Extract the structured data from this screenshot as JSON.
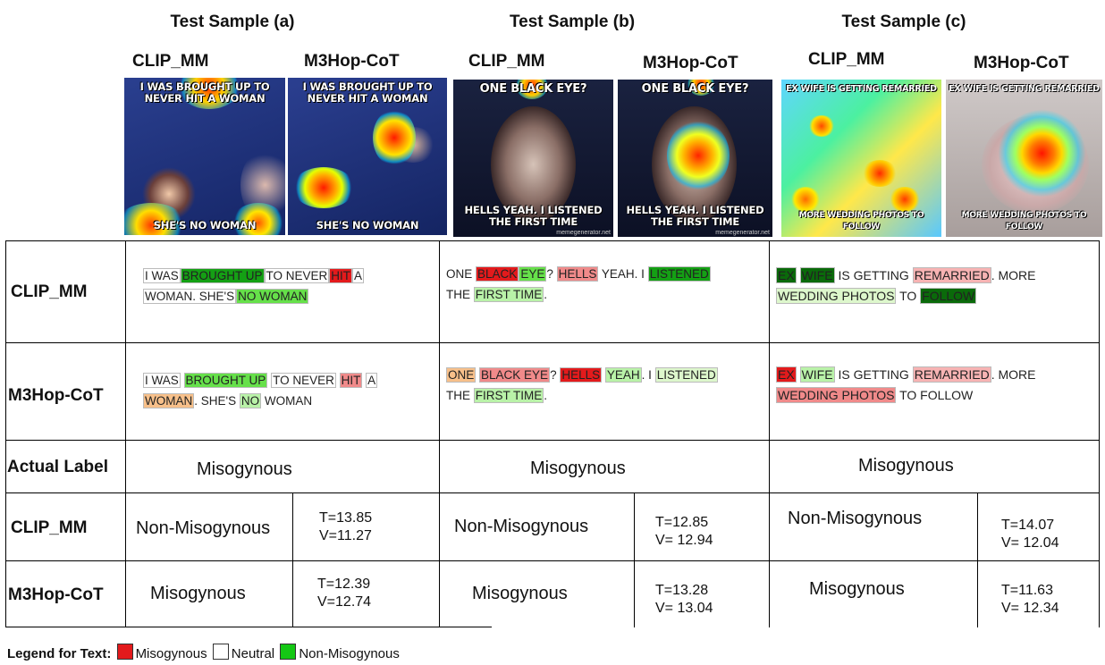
{
  "samples": {
    "a": {
      "title": "Test Sample (a)"
    },
    "b": {
      "title": "Test Sample (b)"
    },
    "c": {
      "title": "Test Sample (c)"
    }
  },
  "model_heads": {
    "clip": "CLIP_MM",
    "m3hop": "M3Hop-CoT"
  },
  "images": {
    "a": {
      "top_caption": "I WAS BROUGHT UP TO NEVER HIT A WOMAN",
      "bottom_caption": "SHE'S NO WOMAN"
    },
    "b": {
      "top_caption": "ONE BLACK EYE?",
      "bottom_caption": "HELLS YEAH. I LISTENED THE FIRST TIME",
      "watermark": "memegenerator.net"
    },
    "c": {
      "top_caption": "EX WIFE IS GETTING REMARRIED",
      "bottom_caption": "MORE WEDDING PHOTOS TO FOLLOW"
    }
  },
  "row_labels": {
    "clip": "CLIP_MM",
    "m3hop": "M3Hop-CoT",
    "actual": "Actual Label",
    "clip2": "CLIP_MM",
    "m3hop2": "M3Hop-CoT"
  },
  "text_highlights": {
    "a_clip": [
      "I WAS",
      "BROUGHT UP",
      "TO NEVER",
      "HIT",
      "A",
      "WOMAN. SHE'S",
      "NO WOMAN"
    ],
    "a_m3": [
      "I WAS",
      "BROUGHT UP",
      "TO NEVER",
      "HIT",
      "A",
      "WOMAN",
      ". SHE'S",
      "NO",
      "WOMAN"
    ],
    "b_clip": [
      "ONE",
      "BLACK",
      "EYE",
      "?",
      "HELLS",
      "YEAH. I",
      "LISTENED",
      "THE",
      "FIRST TIME",
      "."
    ],
    "b_m3": [
      "ONE",
      "BLACK EYE",
      "?",
      "HELLS",
      "YEAH",
      ". I",
      "LISTENED",
      "THE",
      "FIRST TIME",
      "."
    ],
    "c_clip": [
      "EX",
      "WIFE",
      "IS GETTING",
      "REMARRIED",
      ". MORE",
      "WEDDING PHOTOS",
      "TO",
      "FOLLOW"
    ],
    "c_m3": [
      "EX",
      "WIFE",
      "IS GETTING",
      "REMARRIED",
      ". MORE",
      "WEDDING PHOTOS",
      "TO FOLLOW"
    ]
  },
  "actual_label": {
    "a": "Misogynous",
    "b": "Misogynous",
    "c": "Misogynous"
  },
  "predictions": {
    "clip": {
      "a": {
        "label": "Non-Misogynous",
        "T": "T=13.85",
        "V": "V=11.27"
      },
      "b": {
        "label": "Non-Misogynous",
        "T": "T=12.85",
        "V": "V= 12.94"
      },
      "c": {
        "label": "Non-Misogynous",
        "T": "T=14.07",
        "V": "V= 12.04"
      }
    },
    "m3hop": {
      "a": {
        "label": "Misogynous",
        "T": "T=12.39",
        "V": "V=12.74"
      },
      "b": {
        "label": "Misogynous",
        "T": "T=13.28",
        "V": "V= 13.04"
      },
      "c": {
        "label": "Misogynous",
        "T": "T=11.63",
        "V": "V= 12.34"
      }
    }
  },
  "legend": {
    "title": "Legend for Text:",
    "misogynous": "Misogynous",
    "neutral": "Neutral",
    "non_misogynous": "Non-Misogynous",
    "colors": {
      "misogynous": "#e31a1c",
      "neutral": "#ffffff",
      "non_misogynous": "#14c814"
    }
  }
}
